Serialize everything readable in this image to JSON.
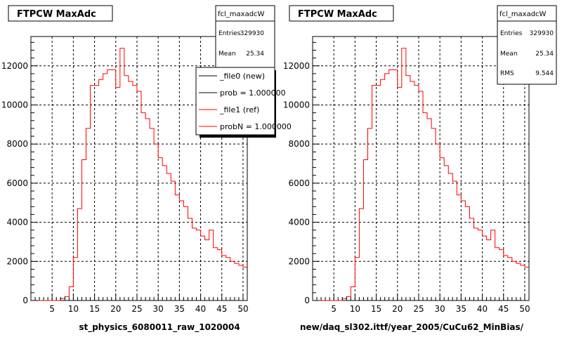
{
  "chart_data": [
    {
      "type": "bar",
      "title": "FTPCW MaxAdc",
      "xlabel": "st_physics_6080011_raw_1020004",
      "xlim": [
        0,
        51
      ],
      "ylim": [
        0,
        13500
      ],
      "x_ticks": [
        "5",
        "10",
        "15",
        "20",
        "25",
        "30",
        "35",
        "40",
        "45",
        "50"
      ],
      "y_ticks": [
        "0",
        "2000",
        "4000",
        "6000",
        "8000",
        "10000",
        "12000"
      ],
      "grid": true,
      "stats": {
        "name": "fcl_maxadcW",
        "entries_label": "Entries",
        "entries": "329930",
        "mean_label": "Mean",
        "mean": "25.34"
      },
      "legend": {
        "placement": "top-right",
        "entries": [
          {
            "label": "_file0 (new)",
            "color": "#000000"
          },
          {
            "label": "prob = 1.000000",
            "color": "#000000"
          },
          {
            "label": "_file1 (ref)",
            "color": "#ff0000"
          },
          {
            "label": "probN = 1.000000",
            "color": "#ff0000"
          }
        ]
      },
      "series": [
        {
          "color": "#ff0000",
          "bin_width": 1,
          "x_start": 0,
          "values": [
            0,
            0,
            0,
            0,
            0,
            0,
            0,
            100,
            200,
            700,
            2200,
            4700,
            7200,
            8800,
            11000,
            11000,
            11300,
            11600,
            11800,
            11800,
            10900,
            12900,
            11500,
            11200,
            11000,
            10700,
            9600,
            9300,
            8800,
            8000,
            7300,
            6900,
            6500,
            6100,
            5400,
            5100,
            4800,
            4200,
            3700,
            3600,
            3300,
            3100,
            3600,
            2700,
            2600,
            2300,
            2200,
            2000,
            1900,
            1800,
            1700
          ]
        }
      ]
    },
    {
      "type": "bar",
      "title": "FTPCW MaxAdc",
      "xlabel": "new/daq_sl302.ittf/year_2005/CuCu62_MinBias/",
      "xlim": [
        0,
        51
      ],
      "ylim": [
        0,
        13500
      ],
      "x_ticks": [
        "5",
        "10",
        "15",
        "20",
        "25",
        "30",
        "35",
        "40",
        "45",
        "50"
      ],
      "y_ticks": [
        "0",
        "2000",
        "4000",
        "6000",
        "8000",
        "10000",
        "12000"
      ],
      "grid": true,
      "stats": {
        "name": "fcl_maxadcW",
        "entries_label": "Entries",
        "entries": "329930",
        "mean_label": "Mean",
        "mean": "25.34",
        "rms_label": "RMS",
        "rms": "9.544"
      },
      "series": [
        {
          "color": "#ff0000",
          "bin_width": 1,
          "x_start": 0,
          "values": [
            0,
            0,
            0,
            0,
            0,
            0,
            0,
            100,
            200,
            700,
            2200,
            4700,
            7200,
            8800,
            11000,
            11000,
            11300,
            11600,
            11800,
            11800,
            10900,
            12900,
            11500,
            11200,
            11000,
            10700,
            9600,
            9300,
            8800,
            8000,
            7300,
            6900,
            6500,
            6100,
            5400,
            5100,
            4800,
            4200,
            3700,
            3600,
            3300,
            3100,
            3600,
            2700,
            2600,
            2300,
            2200,
            2000,
            1900,
            1800,
            1700
          ]
        }
      ]
    }
  ]
}
